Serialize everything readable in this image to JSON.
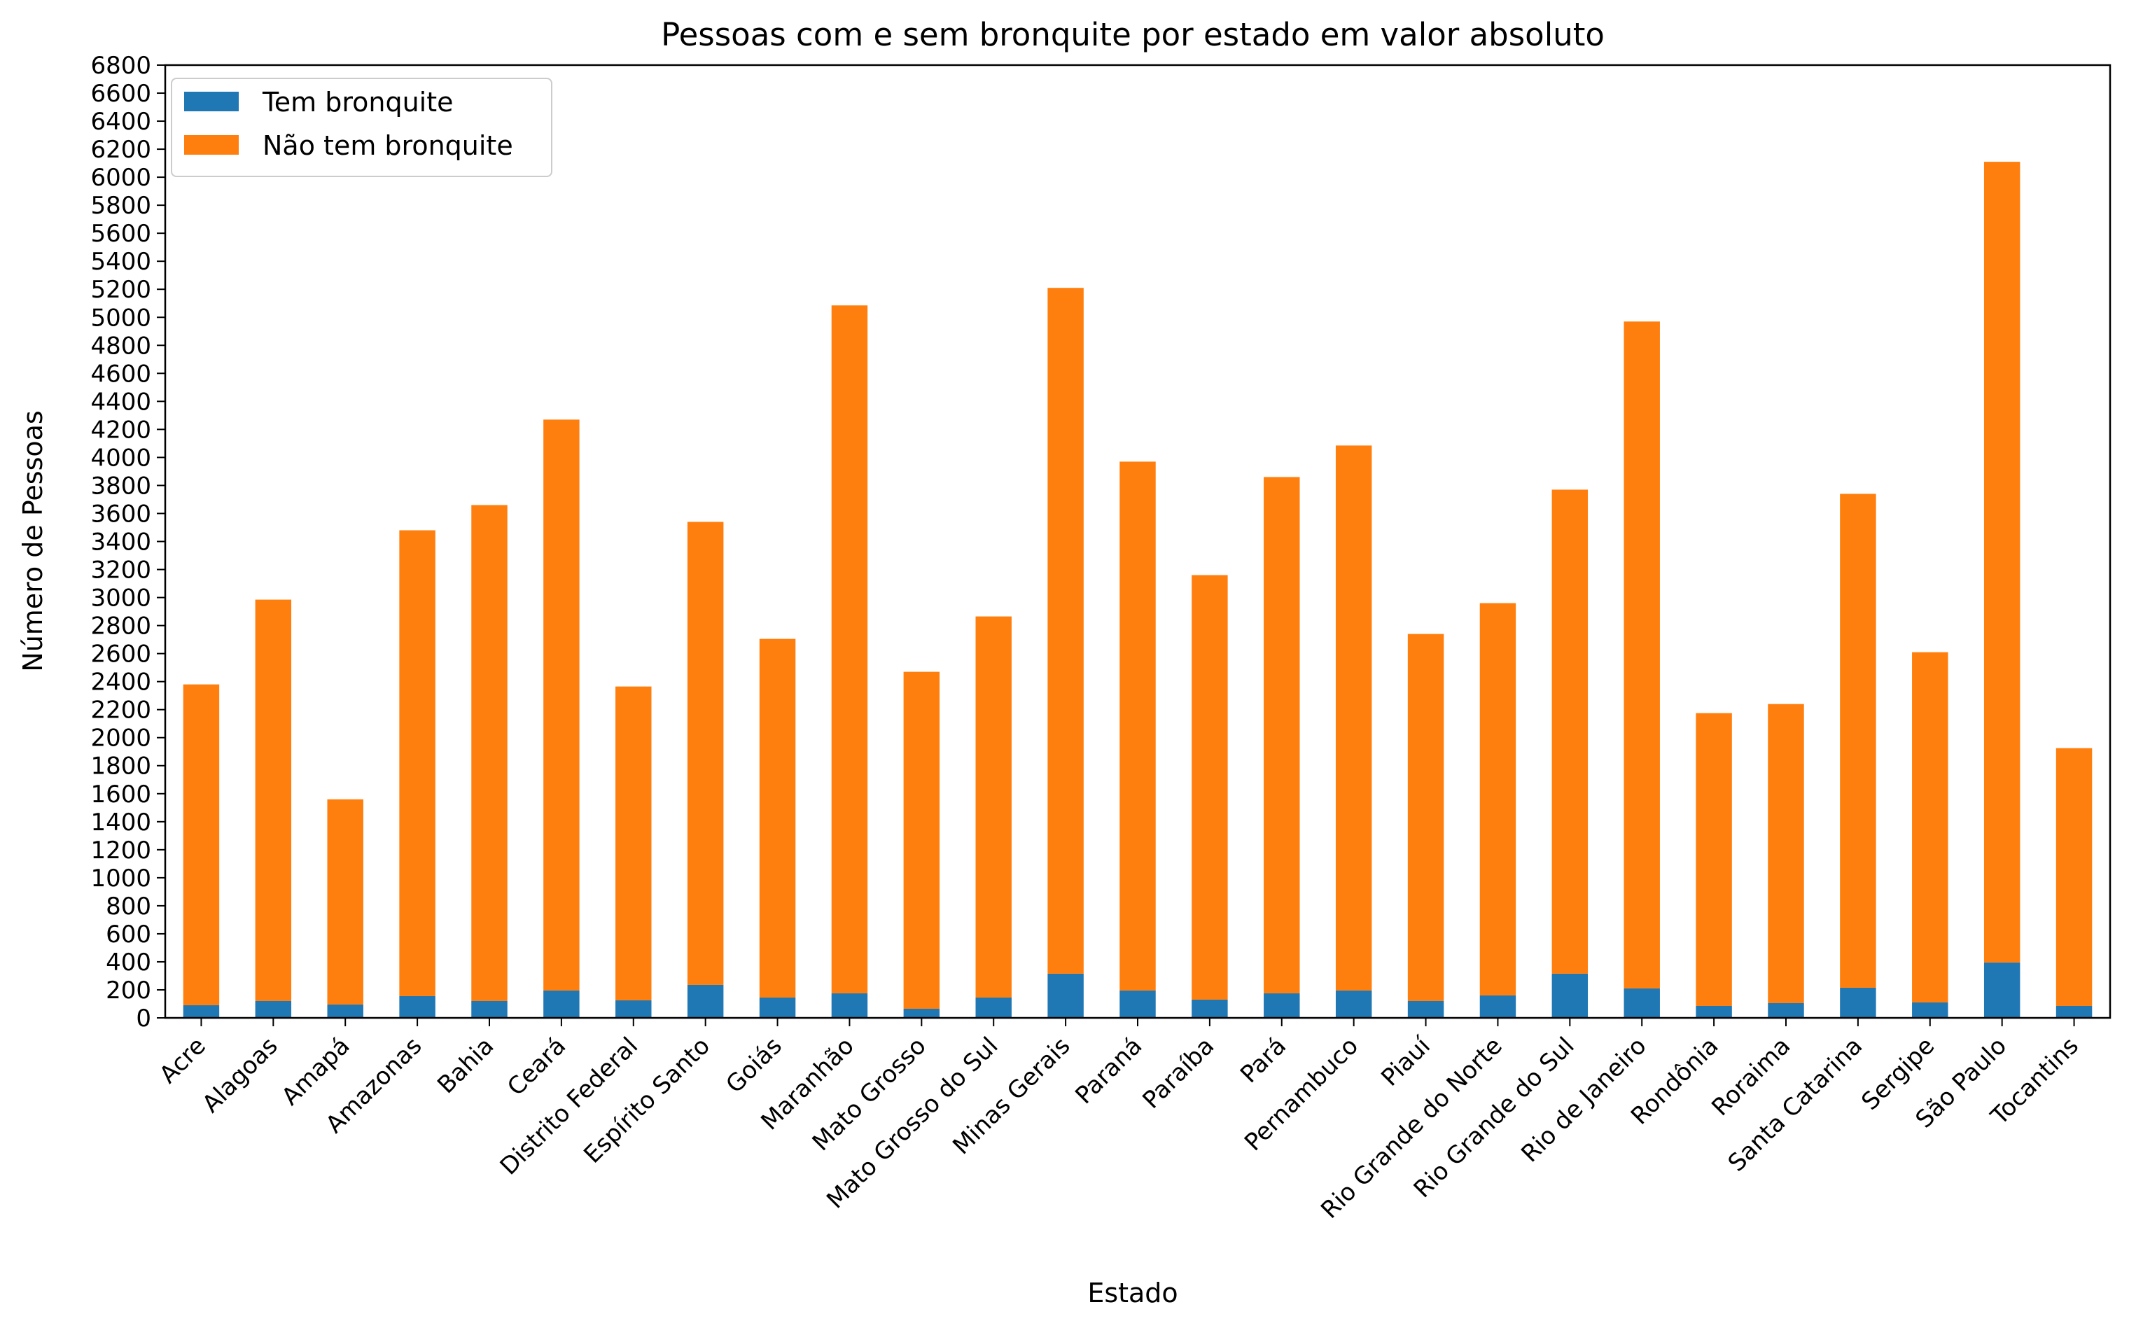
{
  "chart_data": {
    "type": "bar",
    "stacked": true,
    "title": "Pessoas com e sem bronquite por estado em valor absoluto",
    "xlabel": "Estado",
    "ylabel": "Número de Pessoas",
    "ylim": [
      0,
      6800
    ],
    "yticks": [
      0,
      200,
      400,
      600,
      800,
      1000,
      1200,
      1400,
      1600,
      1800,
      2000,
      2200,
      2400,
      2600,
      2800,
      3000,
      3200,
      3400,
      3600,
      3800,
      4000,
      4200,
      4400,
      4600,
      4800,
      5000,
      5200,
      5400,
      5600,
      5800,
      6000,
      6200,
      6400,
      6600,
      6800
    ],
    "grid": false,
    "legend_position": "top-left",
    "categories": [
      "Acre",
      "Alagoas",
      "Amapá",
      "Amazonas",
      "Bahia",
      "Ceará",
      "Distrito Federal",
      "Espírito Santo",
      "Goiás",
      "Maranhão",
      "Mato Grosso",
      "Mato Grosso do Sul",
      "Minas Gerais",
      "Paraná",
      "Paraíba",
      "Pará",
      "Pernambuco",
      "Piauí",
      "Rio Grande do Norte",
      "Rio Grande do Sul",
      "Rio de Janeiro",
      "Rondônia",
      "Roraima",
      "Santa Catarina",
      "Sergipe",
      "São Paulo",
      "Tocantins"
    ],
    "series": [
      {
        "name": "Tem bronquite",
        "color": "#1f77b4",
        "values": [
          90,
          120,
          95,
          155,
          120,
          195,
          125,
          235,
          145,
          175,
          65,
          145,
          315,
          195,
          130,
          175,
          195,
          120,
          160,
          315,
          210,
          85,
          105,
          215,
          110,
          395,
          85
        ]
      },
      {
        "name": "Não tem bronquite",
        "color": "#ff7f0e",
        "values": [
          2290,
          2865,
          1465,
          3325,
          3540,
          4075,
          2240,
          3305,
          2560,
          4910,
          2405,
          2720,
          4895,
          3775,
          3030,
          3685,
          3890,
          2620,
          2800,
          3455,
          4760,
          2090,
          2135,
          3525,
          2500,
          5715,
          1840
        ]
      }
    ]
  }
}
